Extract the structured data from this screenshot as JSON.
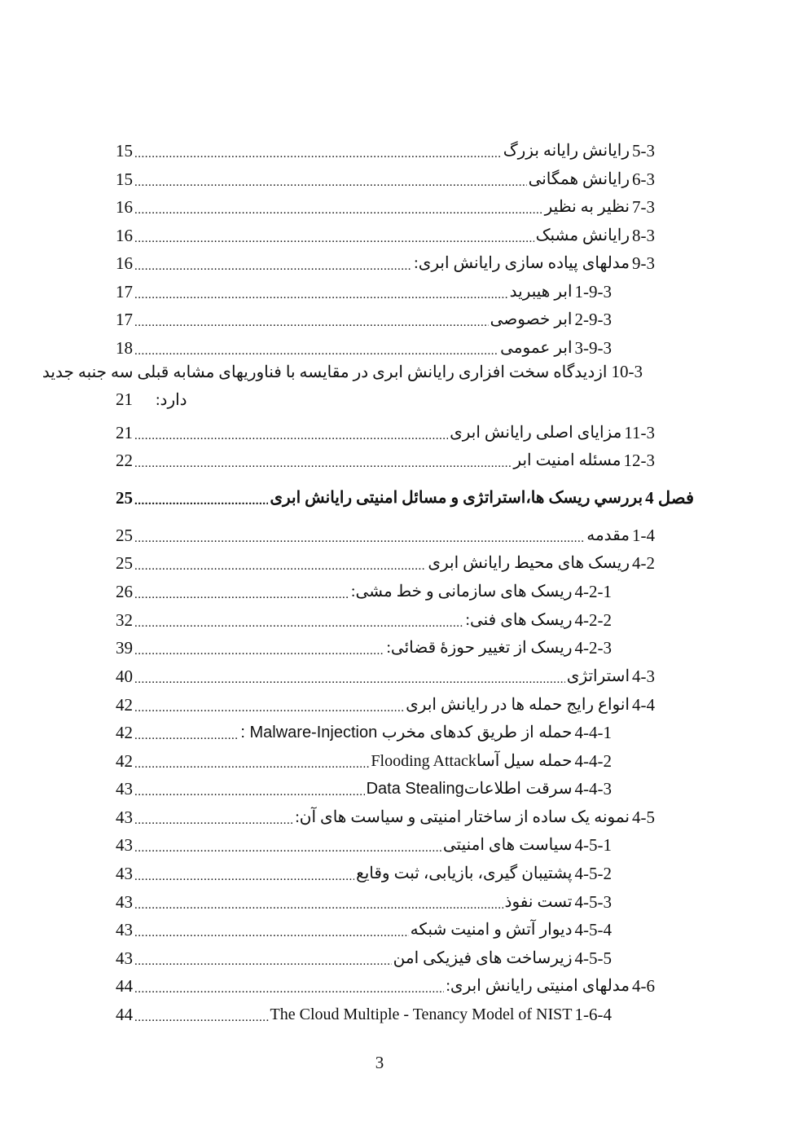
{
  "entries": [
    {
      "num": "5-3",
      "title": "رایانش رایانه بزرگ",
      "page": "15"
    },
    {
      "num": "6-3",
      "title": "رایانش همگانی",
      "page": "15"
    },
    {
      "num": "7-3",
      "title": "نظیر به نظیر",
      "page": "16"
    },
    {
      "num": "8-3",
      "title": "رایانش مشبک",
      "page": "16"
    },
    {
      "num": "9-3",
      "title": "مدلهای پیاده سازی رایانش ابری:",
      "page": "16"
    },
    {
      "num": "1-9-3",
      "title": "ابر هیبرید",
      "page": "17"
    },
    {
      "num": "2-9-3",
      "title": "ابر خصوصی",
      "page": "17"
    },
    {
      "num": "3-9-3",
      "title": "ابر عمومی",
      "page": "18"
    }
  ],
  "wrapped_entry": {
    "num": "10-3",
    "title_line1": "ازدیدگاه سخت افزاری رایانش ابری در مقایسه با فناوریهای مشابه قبلی سه جنبه جدید",
    "title_line2": "دارد:",
    "page": "21"
  },
  "entries2": [
    {
      "num": "11-3",
      "title": "مزایای اصلی رایانش ابری",
      "page": "21"
    },
    {
      "num": "12-3",
      "title": "مسئله امنیت ابر",
      "page": "22"
    }
  ],
  "chapter": {
    "num": "فصل 4",
    "title": "بررسي ریسک ها،استراتژی و مسائل امنیتی رایانش ابری",
    "page": "25"
  },
  "entries3": [
    {
      "num": "1-4",
      "title": "مقدمه",
      "page": "25",
      "level": 1
    },
    {
      "num": "4-2",
      "title": "ریسک های محیط رایانش ابری",
      "page": "25",
      "level": 1
    },
    {
      "num": "4-2-1",
      "title": "ریسک های سازمانی و خط مشی:",
      "page": "26",
      "level": 2
    },
    {
      "num": "4-2-2",
      "title": "ریسک های فنی:",
      "page": "32",
      "level": 2
    },
    {
      "num": "4-2-3",
      "title": "ریسک از تغییر حوزۀ قضائی:",
      "page": "39",
      "level": 2
    },
    {
      "num": "4-3",
      "title": "استراتژی",
      "page": "40",
      "level": 1
    },
    {
      "num": "4-4",
      "title": "انواع رایج حمله ها در رایانش ابری",
      "page": "42",
      "level": 1
    },
    {
      "num": "4-4-1",
      "title": "حمله از طریق کدهای مخرب Malware-Injection :",
      "page": "42",
      "level": 2,
      "sans": true
    },
    {
      "num": "4-4-2",
      "title": "حمله سیل آساFlooding Attack",
      "page": "42",
      "level": 2
    },
    {
      "num": "4-4-3",
      "title": "سرقت اطلاعاتData Stealing",
      "page": "43",
      "level": 2,
      "sans": true
    },
    {
      "num": "4-5",
      "title": "نمونه یک ساده از ساختار امنیتی و سیاست های آن:",
      "page": "43",
      "level": 1
    },
    {
      "num": "4-5-1",
      "title": "سیاست های امنیتی",
      "page": "43",
      "level": 2
    },
    {
      "num": "4-5-2",
      "title": "پشتیبان گیری، بازیابی، ثبت وقایع",
      "page": "43",
      "level": 2
    },
    {
      "num": "4-5-3",
      "title": "تست نفوذ",
      "page": "43",
      "level": 2
    },
    {
      "num": "4-5-4",
      "title": "دیوار آتش و امنیت شبکه",
      "page": "43",
      "level": 2
    },
    {
      "num": "4-5-5",
      "title": "زیرساخت های فیزیکی امن",
      "page": "43",
      "level": 2
    },
    {
      "num": "4-6",
      "title": "مدلهای امنیتی رایانش ابری:",
      "page": "44",
      "level": 1
    },
    {
      "num": "1-6-4",
      "title": "The Cloud Multiple - Tenancy Model of NIST",
      "page": "44",
      "level": 2
    }
  ],
  "footer": {
    "page_number": "3"
  }
}
